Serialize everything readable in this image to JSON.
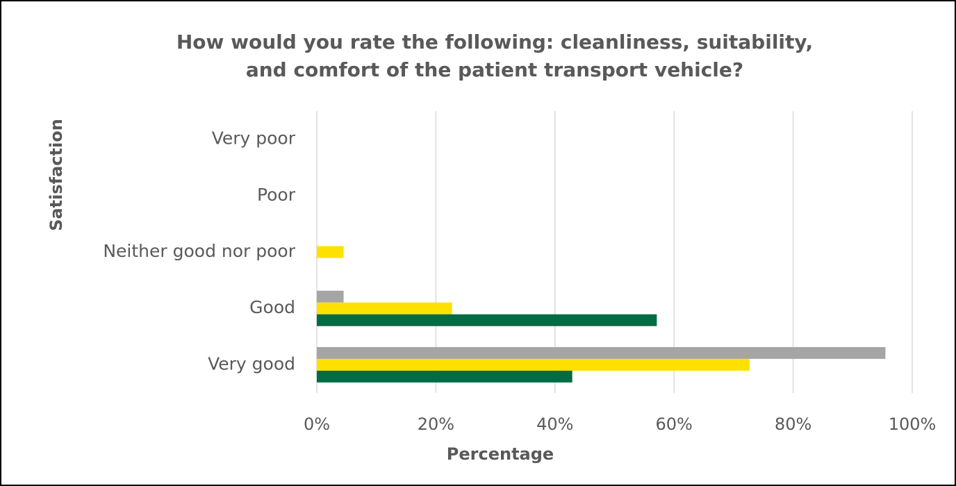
{
  "chart_data": {
    "type": "barh",
    "title": [
      "How would you rate the following: cleanliness, suitability,",
      "and comfort of the patient transport vehicle?"
    ],
    "ylabel": "Satisfaction",
    "xlabel": "Percentage",
    "categories": [
      "Very poor",
      "Poor",
      "Neither good nor poor",
      "Good",
      "Very good"
    ],
    "series": [
      {
        "color": "#a5a5a5",
        "values": [
          0,
          0,
          0,
          4.5,
          95.5
        ]
      },
      {
        "color": "#ffe100",
        "values": [
          0,
          0,
          4.5,
          22.7,
          72.7
        ]
      },
      {
        "color": "#006b45",
        "values": [
          0,
          0,
          0,
          57.1,
          42.9
        ]
      }
    ],
    "xlim": [
      0,
      100
    ],
    "xticks": [
      {
        "value": 0,
        "label": "0%"
      },
      {
        "value": 20,
        "label": "20%"
      },
      {
        "value": 40,
        "label": "40%"
      },
      {
        "value": 60,
        "label": "60%"
      },
      {
        "value": 80,
        "label": "80%"
      },
      {
        "value": 100,
        "label": "100%"
      }
    ],
    "grid": true
  }
}
